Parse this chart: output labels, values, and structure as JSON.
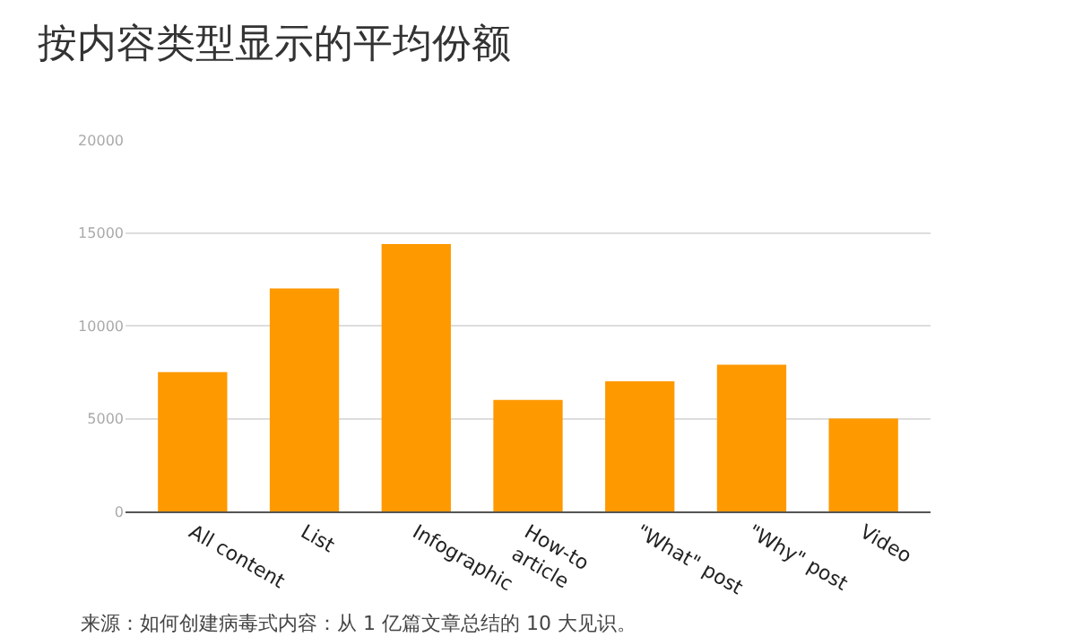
{
  "chart_data": {
    "type": "bar",
    "title": "按内容类型显示的平均份额",
    "categories": [
      "All content",
      "List",
      "Infographic",
      "How-to\narticle",
      "\"What\" post",
      "\"Why\" post",
      "Video"
    ],
    "values": [
      7500,
      12000,
      14400,
      6000,
      7000,
      7900,
      5000
    ],
    "color": "#ff9900",
    "ylim": [
      0,
      20000
    ],
    "yticks": [
      0,
      5000,
      10000,
      15000,
      20000
    ],
    "grid": "y",
    "annotations": [
      "来源：如何创建病毒式内容：从 1 亿篇文章总结的 10 大见识。"
    ]
  }
}
